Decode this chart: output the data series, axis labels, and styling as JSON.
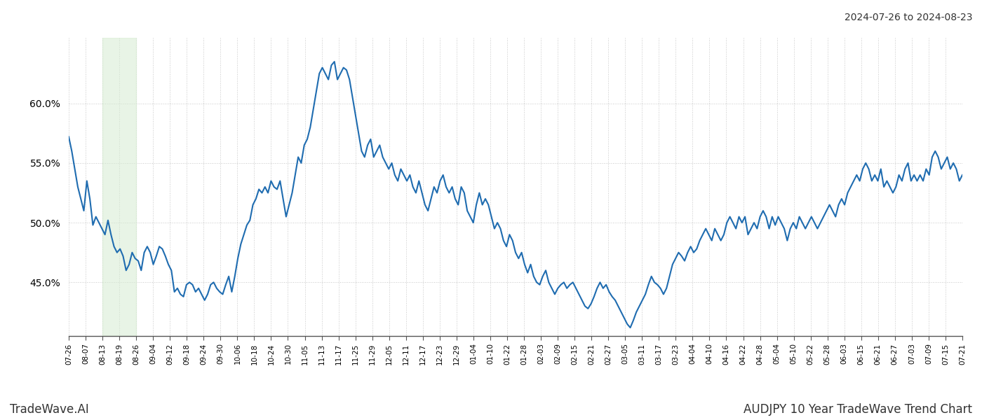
{
  "title_date_range": "2024-07-26 to 2024-08-23",
  "footer_left": "TradeWave.AI",
  "footer_right": "AUDJPY 10 Year TradeWave Trend Chart",
  "line_color": "#1f6cb0",
  "line_width": 1.5,
  "background_color": "#ffffff",
  "grid_color": "#c8c8c8",
  "shade_color": "#d6ecd2",
  "shade_alpha": 0.55,
  "ylim": [
    40.5,
    65.5
  ],
  "yticks": [
    45.0,
    50.0,
    55.0,
    60.0
  ],
  "ytick_labels": [
    "45.0%",
    "50.0%",
    "55.0%",
    "60.0%"
  ],
  "x_labels": [
    "07-26",
    "08-07",
    "08-13",
    "08-19",
    "08-26",
    "09-04",
    "09-12",
    "09-18",
    "09-24",
    "09-30",
    "10-06",
    "10-18",
    "10-24",
    "10-30",
    "11-05",
    "11-13",
    "11-17",
    "11-25",
    "11-29",
    "12-05",
    "12-11",
    "12-17",
    "12-23",
    "12-29",
    "01-04",
    "01-10",
    "01-22",
    "01-28",
    "02-03",
    "02-09",
    "02-15",
    "02-21",
    "02-27",
    "03-05",
    "03-11",
    "03-17",
    "03-23",
    "04-04",
    "04-10",
    "04-16",
    "04-22",
    "04-28",
    "05-04",
    "05-10",
    "05-22",
    "05-28",
    "06-03",
    "06-15",
    "06-21",
    "06-27",
    "07-03",
    "07-09",
    "07-15",
    "07-21"
  ],
  "shade_x_start_label": "08-13",
  "shade_x_end_label": "08-26",
  "y_values": [
    57.2,
    56.0,
    54.5,
    53.0,
    52.0,
    51.0,
    53.5,
    52.0,
    49.8,
    50.5,
    50.0,
    49.5,
    49.0,
    50.2,
    49.0,
    48.0,
    47.5,
    47.8,
    47.2,
    46.0,
    46.5,
    47.5,
    47.0,
    46.8,
    46.0,
    47.5,
    48.0,
    47.5,
    46.5,
    47.2,
    48.0,
    47.8,
    47.2,
    46.5,
    46.0,
    44.2,
    44.5,
    44.0,
    43.8,
    44.8,
    45.0,
    44.8,
    44.2,
    44.5,
    44.0,
    43.5,
    44.0,
    44.8,
    45.0,
    44.5,
    44.2,
    44.0,
    44.8,
    45.5,
    44.2,
    45.5,
    47.0,
    48.2,
    49.0,
    49.8,
    50.2,
    51.5,
    52.0,
    52.8,
    52.5,
    53.0,
    52.5,
    53.5,
    53.0,
    52.8,
    53.5,
    52.0,
    50.5,
    51.5,
    52.5,
    54.0,
    55.5,
    55.0,
    56.5,
    57.0,
    58.0,
    59.5,
    61.0,
    62.5,
    63.0,
    62.5,
    62.0,
    63.2,
    63.5,
    62.0,
    62.5,
    63.0,
    62.8,
    62.0,
    60.5,
    59.0,
    57.5,
    56.0,
    55.5,
    56.5,
    57.0,
    55.5,
    56.0,
    56.5,
    55.5,
    55.0,
    54.5,
    55.0,
    54.0,
    53.5,
    54.5,
    54.0,
    53.5,
    54.0,
    53.0,
    52.5,
    53.5,
    52.5,
    51.5,
    51.0,
    52.0,
    53.0,
    52.5,
    53.5,
    54.0,
    53.0,
    52.5,
    53.0,
    52.0,
    51.5,
    53.0,
    52.5,
    51.0,
    50.5,
    50.0,
    51.5,
    52.5,
    51.5,
    52.0,
    51.5,
    50.5,
    49.5,
    50.0,
    49.5,
    48.5,
    48.0,
    49.0,
    48.5,
    47.5,
    47.0,
    47.5,
    46.5,
    45.8,
    46.5,
    45.5,
    45.0,
    44.8,
    45.5,
    46.0,
    45.0,
    44.5,
    44.0,
    44.5,
    44.8,
    45.0,
    44.5,
    44.8,
    45.0,
    44.5,
    44.0,
    43.5,
    43.0,
    42.8,
    43.2,
    43.8,
    44.5,
    45.0,
    44.5,
    44.8,
    44.2,
    43.8,
    43.5,
    43.0,
    42.5,
    42.0,
    41.5,
    41.2,
    41.8,
    42.5,
    43.0,
    43.5,
    44.0,
    44.8,
    45.5,
    45.0,
    44.8,
    44.5,
    44.0,
    44.5,
    45.5,
    46.5,
    47.0,
    47.5,
    47.2,
    46.8,
    47.5,
    48.0,
    47.5,
    47.8,
    48.5,
    49.0,
    49.5,
    49.0,
    48.5,
    49.5,
    49.0,
    48.5,
    49.0,
    50.0,
    50.5,
    50.0,
    49.5,
    50.5,
    50.0,
    50.5,
    49.0,
    49.5,
    50.0,
    49.5,
    50.5,
    51.0,
    50.5,
    49.5,
    50.5,
    49.8,
    50.5,
    50.0,
    49.5,
    48.5,
    49.5,
    50.0,
    49.5,
    50.5,
    50.0,
    49.5,
    50.0,
    50.5,
    50.0,
    49.5,
    50.0,
    50.5,
    51.0,
    51.5,
    51.0,
    50.5,
    51.5,
    52.0,
    51.5,
    52.5,
    53.0,
    53.5,
    54.0,
    53.5,
    54.5,
    55.0,
    54.5,
    53.5,
    54.0,
    53.5,
    54.5,
    53.0,
    53.5,
    53.0,
    52.5,
    53.0,
    54.0,
    53.5,
    54.5,
    55.0,
    53.5,
    54.0,
    53.5,
    54.0,
    53.5,
    54.5,
    54.0,
    55.5,
    56.0,
    55.5,
    54.5,
    55.0,
    55.5,
    54.5,
    55.0,
    54.5,
    53.5,
    54.0
  ]
}
